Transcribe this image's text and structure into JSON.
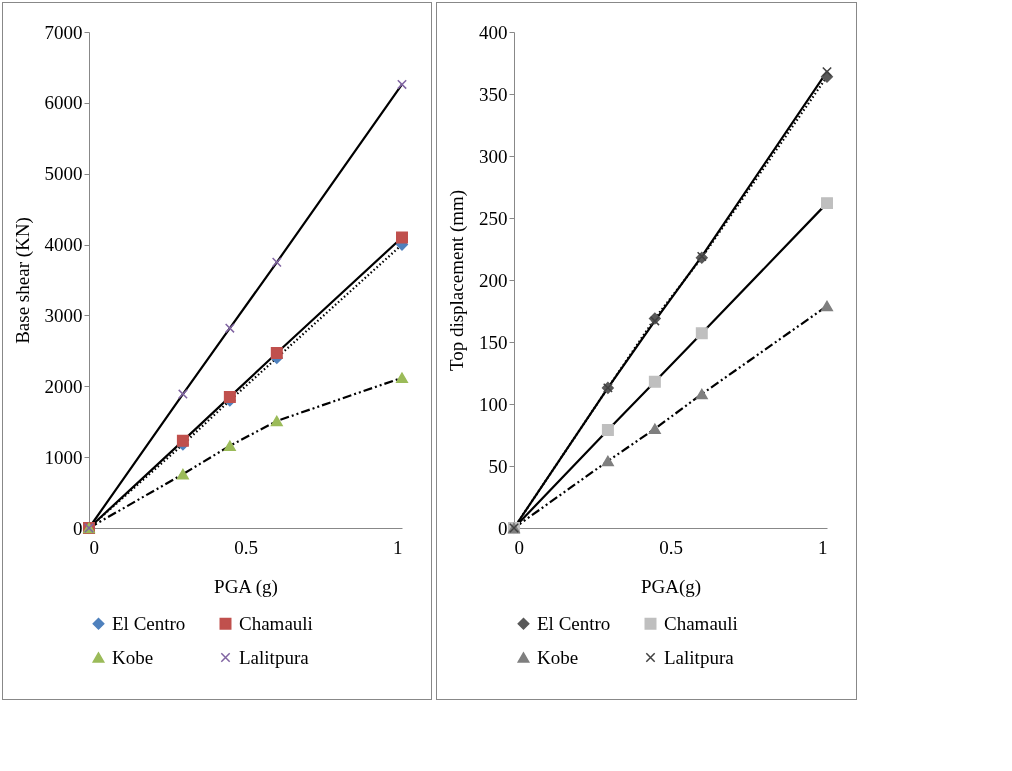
{
  "chart_data": [
    {
      "type": "line",
      "xlabel": "PGA (g)",
      "ylabel": "Base shear (KN)",
      "x": [
        0,
        0.3,
        0.45,
        0.6,
        1
      ],
      "xlim": [
        0,
        1
      ],
      "xticks": [
        0,
        0.5,
        1
      ],
      "ylim": [
        0,
        7000
      ],
      "yticks": [
        0,
        1000,
        2000,
        3000,
        4000,
        5000,
        6000,
        7000
      ],
      "grid": false,
      "legend": "bottom",
      "series": [
        {
          "name": "El Centro",
          "color": "#4f81bd",
          "marker": "diamond",
          "line_style": "dotted",
          "values": [
            0,
            1180,
            1800,
            2400,
            4000
          ]
        },
        {
          "name": "Chamauli",
          "color": "#c0504d",
          "marker": "square",
          "line_style": "solid",
          "values": [
            0,
            1230,
            1850,
            2470,
            4100
          ]
        },
        {
          "name": "Kobe",
          "color": "#9bbb59",
          "marker": "triangle",
          "line_style": "dashed",
          "values": [
            0,
            760,
            1160,
            1510,
            2120
          ]
        },
        {
          "name": "Lalitpura",
          "color": "#8064a2",
          "marker": "cross",
          "line_style": "solid",
          "values": [
            0,
            1890,
            2820,
            3750,
            6260
          ]
        }
      ]
    },
    {
      "type": "line",
      "xlabel": "PGA(g)",
      "ylabel": "Top displacement (mm)",
      "x": [
        0,
        0.3,
        0.45,
        0.6,
        1
      ],
      "xlim": [
        0,
        1
      ],
      "xticks": [
        0,
        0.5,
        1
      ],
      "ylim": [
        0,
        400
      ],
      "yticks": [
        0,
        50,
        100,
        150,
        200,
        250,
        300,
        350,
        400
      ],
      "grid": false,
      "legend": "bottom",
      "series": [
        {
          "name": "El Centro",
          "color": "#595959",
          "marker": "diamond",
          "line_style": "dotted",
          "values": [
            0,
            113,
            169,
            218,
            364
          ]
        },
        {
          "name": "Chamauli",
          "color": "#bfbfbf",
          "marker": "square",
          "line_style": "solid",
          "values": [
            0,
            79,
            118,
            157,
            262
          ]
        },
        {
          "name": "Kobe",
          "color": "#7f7f7f",
          "marker": "triangle",
          "line_style": "dashed",
          "values": [
            0,
            54,
            80,
            108,
            179
          ]
        },
        {
          "name": "Lalitpura",
          "color": "#404040",
          "marker": "cross",
          "line_style": "solid",
          "values": [
            0,
            113,
            167,
            219,
            368
          ]
        }
      ]
    }
  ]
}
